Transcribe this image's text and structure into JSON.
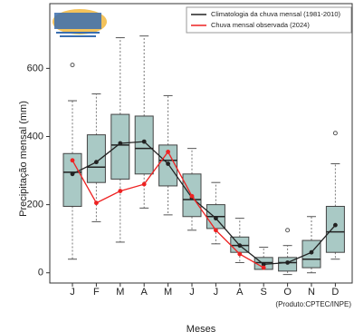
{
  "chart_data": {
    "type": "box",
    "categories": [
      "J",
      "F",
      "M",
      "A",
      "M",
      "J",
      "J",
      "A",
      "S",
      "O",
      "N",
      "D"
    ],
    "boxes": [
      {
        "whislo": 40,
        "q1": 195,
        "med": 295,
        "q3": 350,
        "whishi": 505,
        "fliers": [
          610
        ]
      },
      {
        "whislo": 150,
        "q1": 265,
        "med": 310,
        "q3": 405,
        "whishi": 525,
        "fliers": []
      },
      {
        "whislo": 90,
        "q1": 275,
        "med": 375,
        "q3": 465,
        "whishi": 690,
        "fliers": []
      },
      {
        "whislo": 190,
        "q1": 290,
        "med": 365,
        "q3": 460,
        "whishi": 695,
        "fliers": []
      },
      {
        "whislo": 170,
        "q1": 255,
        "med": 330,
        "q3": 375,
        "whishi": 520,
        "fliers": []
      },
      {
        "whislo": 125,
        "q1": 165,
        "med": 215,
        "q3": 290,
        "whishi": 365,
        "fliers": []
      },
      {
        "whislo": 85,
        "q1": 130,
        "med": 165,
        "q3": 200,
        "whishi": 265,
        "fliers": []
      },
      {
        "whislo": 30,
        "q1": 60,
        "med": 80,
        "q3": 105,
        "whishi": 160,
        "fliers": []
      },
      {
        "whislo": 10,
        "q1": 10,
        "med": 30,
        "q3": 45,
        "whishi": 75,
        "fliers": []
      },
      {
        "whislo": -5,
        "q1": 5,
        "med": 30,
        "q3": 45,
        "whishi": 80,
        "fliers": [
          125
        ]
      },
      {
        "whislo": 0,
        "q1": 15,
        "med": 40,
        "q3": 95,
        "whishi": 165,
        "fliers": []
      },
      {
        "whislo": 40,
        "q1": 60,
        "med": 120,
        "q3": 195,
        "whishi": 320,
        "fliers": [
          410
        ]
      }
    ],
    "box_color": "#a9c9c5",
    "series": [
      {
        "name": "Climatologia da chuva mensal (1981-2010)",
        "color": "#222222",
        "values": [
          290,
          325,
          380,
          385,
          320,
          220,
          160,
          80,
          25,
          30,
          60,
          140
        ]
      },
      {
        "name": "Chuva mensal observada (2024)",
        "color": "#ee2222",
        "values": [
          330,
          205,
          240,
          260,
          355,
          225,
          125,
          55,
          15,
          null,
          null,
          null
        ]
      }
    ],
    "ylabel": "Precipitação mensal (mm)",
    "xlabel": "Meses",
    "source": "(Produto:CPTEC/INPE)",
    "ylim": [
      -30,
      790
    ],
    "yticks": [
      0,
      200,
      400,
      600
    ],
    "legend": "upper right"
  }
}
